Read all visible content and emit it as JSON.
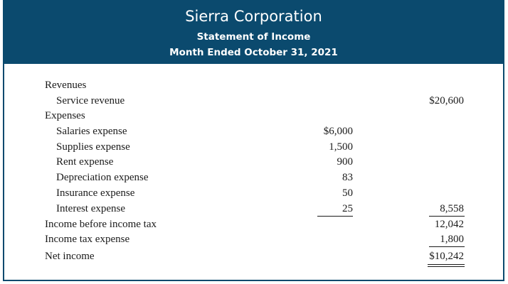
{
  "header": {
    "company": "Sierra Corporation",
    "statement": "Statement of Income",
    "period": "Month Ended October 31, 2021",
    "background_color": "#0b4a6e"
  },
  "revenues": {
    "label": "Revenues",
    "items": [
      {
        "label": "Service revenue",
        "amount": "$20,600"
      }
    ]
  },
  "expenses": {
    "label": "Expenses",
    "items": [
      {
        "label": "Salaries expense",
        "amount": "$6,000"
      },
      {
        "label": "Supplies expense",
        "amount": "1,500"
      },
      {
        "label": "Rent expense",
        "amount": "900"
      },
      {
        "label": "Depreciation expense",
        "amount": "83"
      },
      {
        "label": "Insurance expense",
        "amount": "50"
      },
      {
        "label": "Interest expense",
        "amount": "25"
      }
    ],
    "total": "8,558"
  },
  "income_before_tax": {
    "label": "Income before income tax",
    "amount": "12,042"
  },
  "income_tax": {
    "label": "Income tax expense",
    "amount": "1,800"
  },
  "net_income": {
    "label": "Net income",
    "amount": "$10,242"
  }
}
